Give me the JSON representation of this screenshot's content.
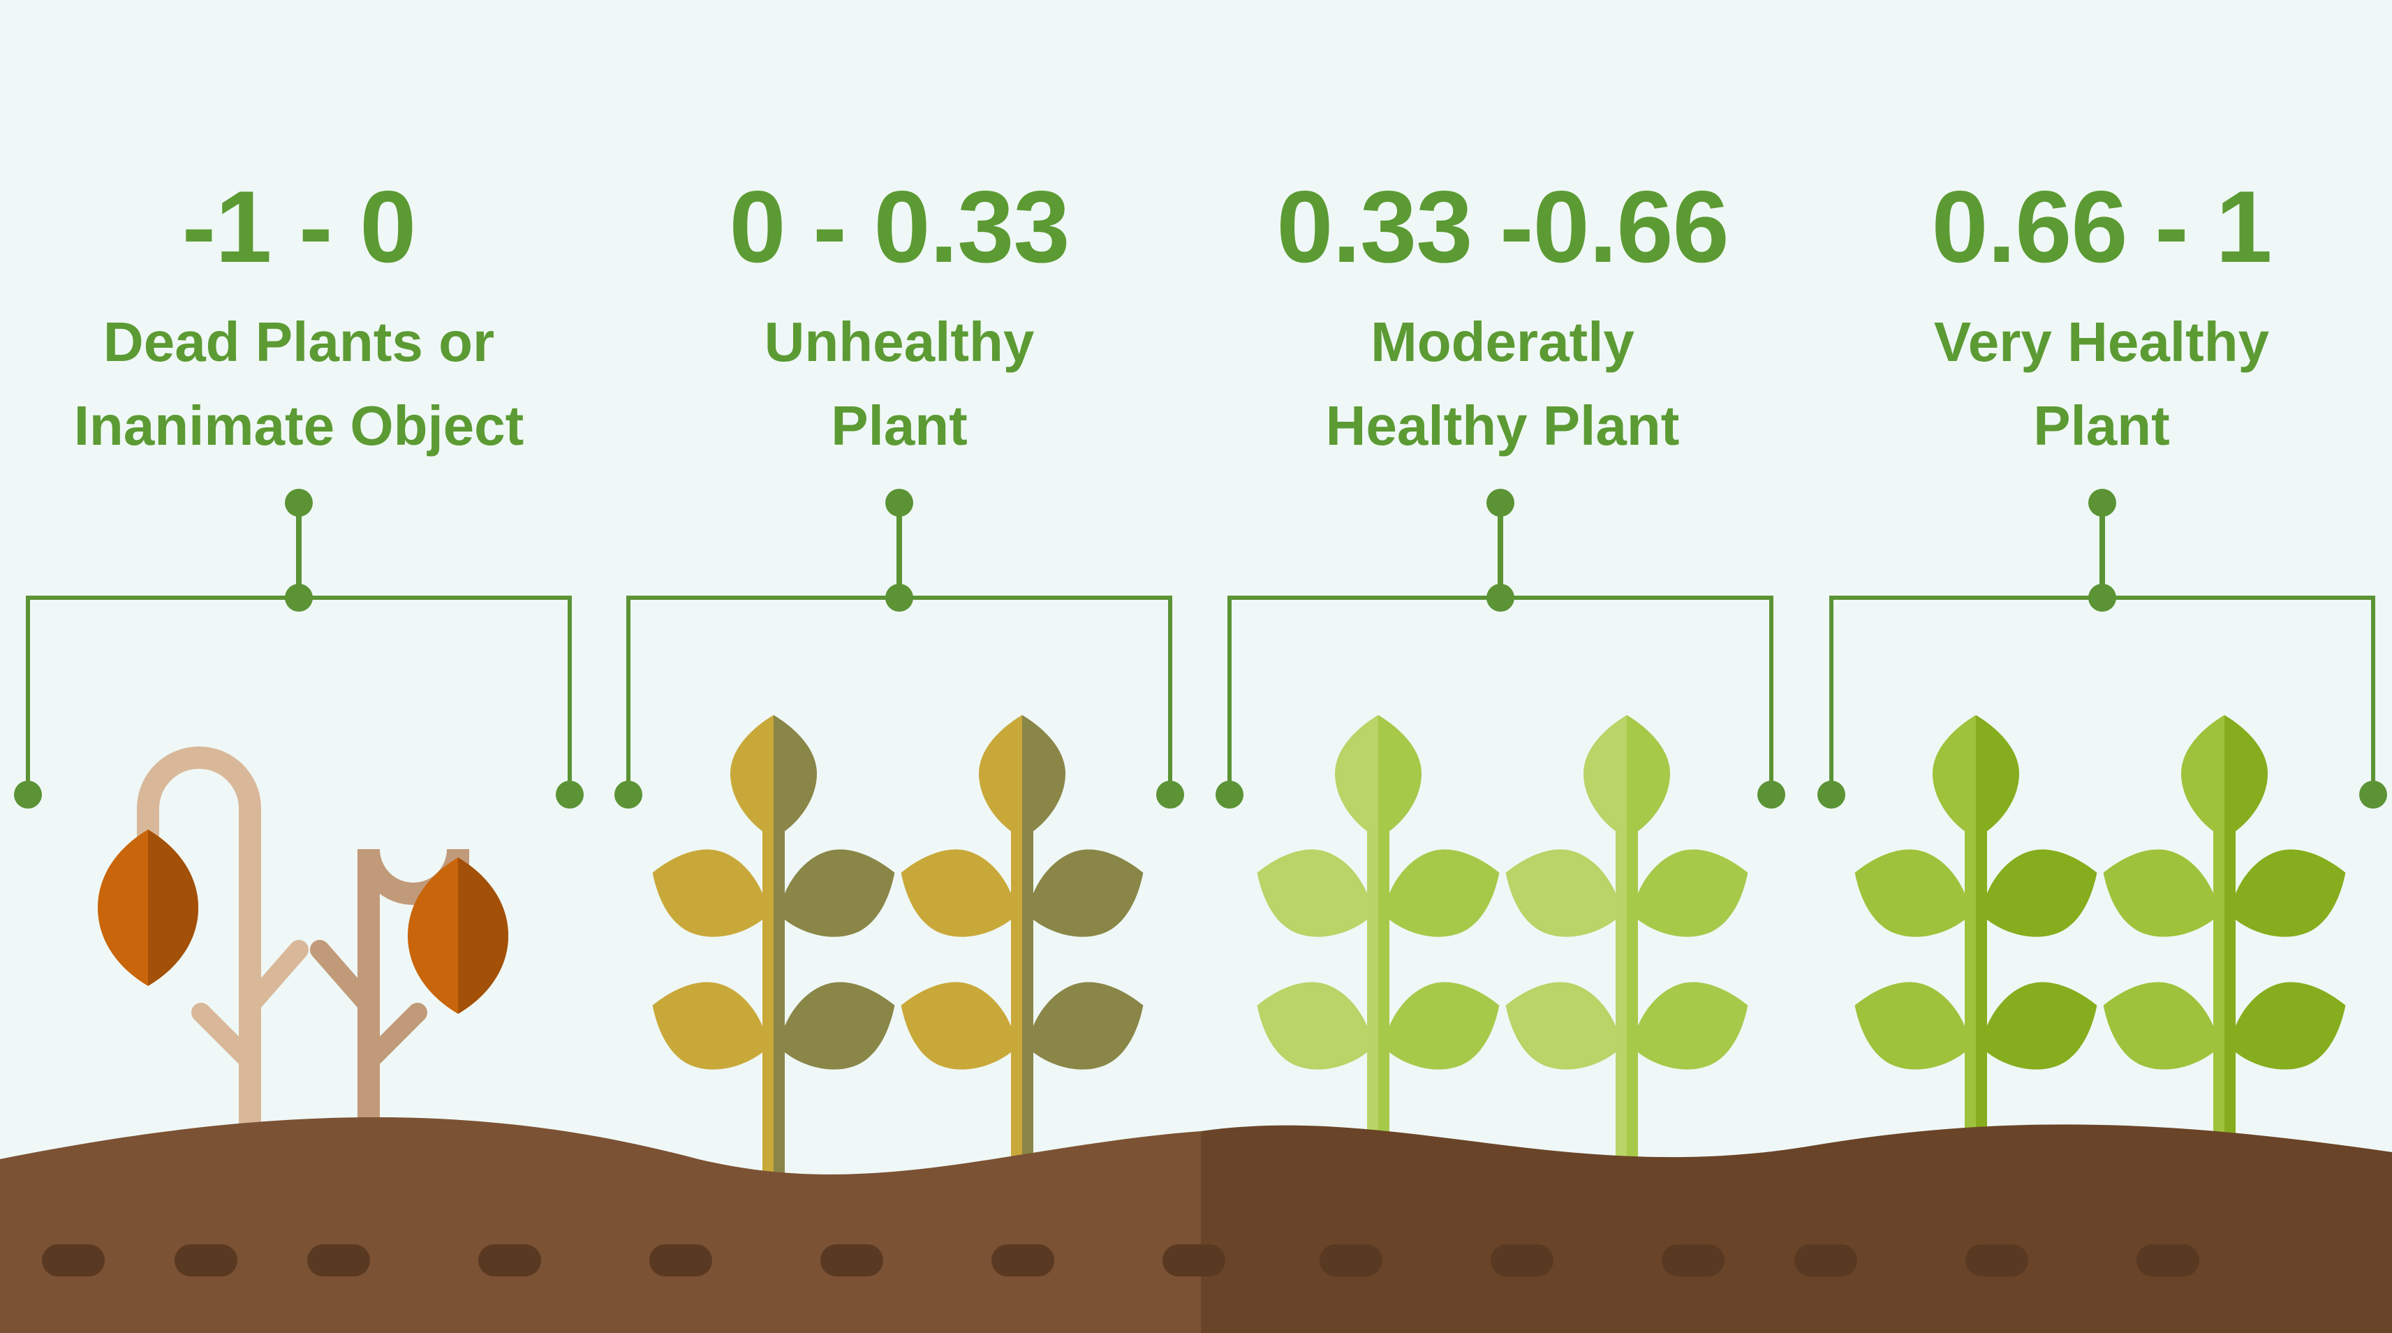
{
  "categories": [
    {
      "range": "-1 - 0",
      "label_lines": [
        "Dead Plants or",
        "Inanimate Object"
      ],
      "plant_style": "dead"
    },
    {
      "range": "0 - 0.33",
      "label_lines": [
        "Unhealthy",
        "Plant"
      ],
      "plant_style": "unhealthy"
    },
    {
      "range": "0.33 -0.66",
      "label_lines": [
        "Moderatly",
        "Healthy Plant"
      ],
      "plant_style": "moderate"
    },
    {
      "range": "0.66 - 1",
      "label_lines": [
        "Very Healthy",
        "Plant"
      ],
      "plant_style": "very-healthy"
    }
  ],
  "colors": {
    "background": "#eff8f6",
    "text_green": "#5c9a33",
    "connector_green": "#5b9335",
    "soil_light": "#7c5234",
    "soil_dark": "#6a4428",
    "soil_dots": "#5a3922",
    "dead_stem": "#d9b89a",
    "dead_stem_dark": "#c19a7a",
    "dead_leaf": "#c9650a",
    "dead_leaf_dark": "#a35008",
    "unhealthy_leaf": "#c9a83a",
    "unhealthy_leaf_dark": "#8a8648",
    "moderate_leaf": "#b9d467",
    "moderate_leaf_dark": "#a6c94a",
    "healthy_leaf": "#9ec23b",
    "healthy_leaf_dark": "#86ad1e"
  }
}
